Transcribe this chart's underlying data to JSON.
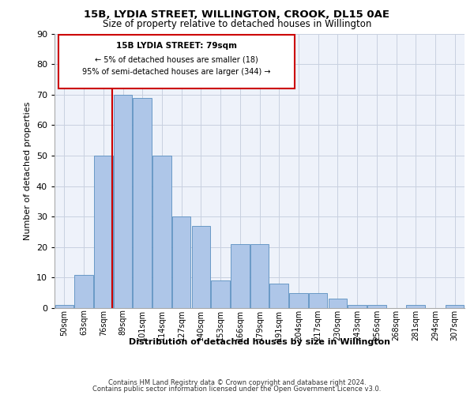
{
  "title1": "15B, LYDIA STREET, WILLINGTON, CROOK, DL15 0AE",
  "title2": "Size of property relative to detached houses in Willington",
  "xlabel": "Distribution of detached houses by size in Willington",
  "ylabel": "Number of detached properties",
  "bar_labels": [
    "50sqm",
    "63sqm",
    "76sqm",
    "89sqm",
    "101sqm",
    "114sqm",
    "127sqm",
    "140sqm",
    "153sqm",
    "166sqm",
    "179sqm",
    "191sqm",
    "204sqm",
    "217sqm",
    "230sqm",
    "243sqm",
    "256sqm",
    "268sqm",
    "281sqm",
    "294sqm",
    "307sqm"
  ],
  "bar_values": [
    1,
    11,
    50,
    70,
    69,
    50,
    30,
    27,
    9,
    21,
    21,
    8,
    5,
    5,
    3,
    1,
    1,
    0,
    1,
    0,
    1
  ],
  "bar_color": "#aec6e8",
  "bar_edge_color": "#5a8fc0",
  "ylim": [
    0,
    90
  ],
  "yticks": [
    0,
    10,
    20,
    30,
    40,
    50,
    60,
    70,
    80,
    90
  ],
  "vline_color": "#cc0000",
  "annotation_title": "15B LYDIA STREET: 79sqm",
  "annotation_line1": "← 5% of detached houses are smaller (18)",
  "annotation_line2": "95% of semi-detached houses are larger (344) →",
  "footer1": "Contains HM Land Registry data © Crown copyright and database right 2024.",
  "footer2": "Contains public sector information licensed under the Open Government Licence v3.0.",
  "bg_color": "#eef2fa",
  "grid_color": "#c8d0e0"
}
